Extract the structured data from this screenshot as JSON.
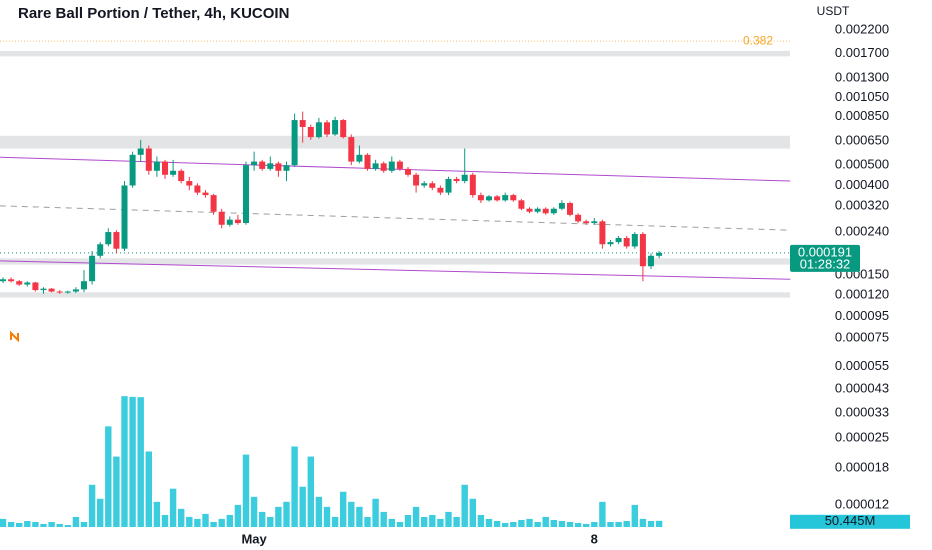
{
  "chart_data": {
    "type": "candlestick",
    "title": "Rare Ball Portion / Tether, 4h, KUCOIN",
    "y_axis_label": "USDT",
    "log_scale": true,
    "up_color": "#089981",
    "down_color": "#f23645",
    "categories": [
      null,
      null,
      null,
      null,
      null,
      null,
      null,
      null,
      null,
      null,
      null,
      null,
      null,
      null,
      null,
      null,
      null,
      null,
      null,
      null,
      null,
      null,
      null,
      null,
      null,
      null,
      null,
      null,
      null,
      null,
      null,
      "May",
      null,
      null,
      null,
      null,
      null,
      null,
      null,
      null,
      null,
      null,
      null,
      null,
      null,
      null,
      null,
      null,
      null,
      null,
      null,
      null,
      null,
      null,
      null,
      null,
      null,
      null,
      null,
      null,
      null,
      null,
      null,
      null,
      null,
      null,
      null,
      null,
      null,
      null,
      null,
      null,
      null,
      "8",
      null,
      null,
      null,
      null,
      null,
      null,
      null,
      null
    ],
    "open": [
      0.00014,
      0.000143,
      0.00014,
      0.000135,
      0.000138,
      0.000127,
      0.000129,
      0.000125,
      0.000124,
      0.000125,
      0.000128,
      0.00014,
      0.000185,
      0.00021,
      0.00024,
      0.0002,
      0.0004,
      0.00056,
      0.0006,
      0.00047,
      0.00052,
      0.00045,
      0.00047,
      0.00042,
      0.0004,
      0.00037,
      0.00036,
      0.0003,
      0.00026,
      0.000275,
      0.000265,
      0.0005,
      0.00052,
      0.00048,
      0.00051,
      0.00047,
      0.0005,
      0.00082,
      0.00076,
      0.00068,
      0.0008,
      0.0007,
      0.00082,
      0.00068,
      0.00052,
      0.00056,
      0.00048,
      0.00051,
      0.00047,
      0.00052,
      0.00048,
      0.00045,
      0.0004,
      0.00041,
      0.00039,
      0.00037,
      0.00043,
      0.00042,
      0.00045,
      0.00036,
      0.00034,
      0.000355,
      0.00034,
      0.00036,
      0.00034,
      0.00031,
      0.0003,
      0.00031,
      0.000295,
      0.00031,
      0.00033,
      0.00029,
      0.00027,
      0.000265,
      0.00027,
      0.00021,
      0.000215,
      0.000225,
      0.000205,
      0.000235,
      0.000165,
      0.000185
    ],
    "high": [
      0.000146,
      0.000146,
      0.000142,
      0.00014,
      0.000139,
      0.000131,
      0.00013,
      0.000127,
      0.000126,
      0.000131,
      0.000158,
      0.000195,
      0.000215,
      0.00025,
      0.000245,
      0.00042,
      0.00058,
      0.00066,
      0.00062,
      0.00055,
      0.00053,
      0.00053,
      0.00048,
      0.00044,
      0.00041,
      0.00038,
      0.000365,
      0.00031,
      0.000285,
      0.00029,
      0.00052,
      0.00058,
      0.00053,
      0.00055,
      0.00052,
      0.00052,
      0.00088,
      0.0009,
      0.00078,
      0.00084,
      0.00082,
      0.00085,
      0.00083,
      0.0007,
      0.00062,
      0.00057,
      0.00053,
      0.00052,
      0.00055,
      0.00053,
      0.00049,
      0.00046,
      0.00042,
      0.00042,
      0.0004,
      0.00044,
      0.00044,
      0.0006,
      0.00046,
      0.00037,
      0.00036,
      0.00036,
      0.00037,
      0.000365,
      0.000345,
      0.000315,
      0.000315,
      0.000315,
      0.000315,
      0.00034,
      0.000335,
      0.000295,
      0.000275,
      0.00028,
      0.000275,
      0.00022,
      0.00023,
      0.00023,
      0.00024,
      0.00024,
      0.00019,
      0.000195
    ],
    "low": [
      0.000137,
      0.000138,
      0.000133,
      0.000132,
      0.000125,
      0.000122,
      0.000124,
      0.000122,
      0.000122,
      0.000123,
      0.000124,
      0.000135,
      0.00018,
      0.000205,
      0.00019,
      0.000195,
      0.00039,
      0.00052,
      0.00045,
      0.00044,
      0.00043,
      0.00044,
      0.00041,
      0.00038,
      0.00036,
      0.00035,
      0.00029,
      0.00025,
      0.000255,
      0.00026,
      0.00026,
      0.00047,
      0.00047,
      0.00047,
      0.00044,
      0.00042,
      0.00049,
      0.00064,
      0.00066,
      0.00067,
      0.00068,
      0.00069,
      0.00067,
      0.0005,
      0.00051,
      0.00047,
      0.00047,
      0.00046,
      0.00046,
      0.00047,
      0.00044,
      0.00037,
      0.00039,
      0.00038,
      0.00036,
      0.00036,
      0.00041,
      0.00041,
      0.00035,
      0.00033,
      0.000335,
      0.000335,
      0.000335,
      0.000335,
      0.000305,
      0.000295,
      0.000295,
      0.00029,
      0.00029,
      0.000305,
      0.000285,
      0.000265,
      0.00026,
      0.00026,
      0.0002,
      0.000205,
      0.00021,
      0.0002,
      0.0002,
      0.00014,
      0.00016,
      0.00018
    ],
    "close": [
      0.000143,
      0.00014,
      0.000135,
      0.000138,
      0.000127,
      0.000129,
      0.000125,
      0.000124,
      0.000125,
      0.000128,
      0.00014,
      0.000185,
      0.00021,
      0.00024,
      0.0002,
      0.0004,
      0.00056,
      0.0006,
      0.00047,
      0.00052,
      0.00045,
      0.00047,
      0.00042,
      0.0004,
      0.00037,
      0.00036,
      0.0003,
      0.00026,
      0.000275,
      0.000265,
      0.0005,
      0.00052,
      0.00048,
      0.00051,
      0.00047,
      0.0005,
      0.00082,
      0.00076,
      0.00068,
      0.0008,
      0.0007,
      0.00082,
      0.00068,
      0.00052,
      0.00056,
      0.00048,
      0.00051,
      0.00047,
      0.00052,
      0.00048,
      0.00045,
      0.0004,
      0.00041,
      0.00039,
      0.00037,
      0.00043,
      0.00042,
      0.00045,
      0.00036,
      0.00034,
      0.000355,
      0.00034,
      0.00036,
      0.00034,
      0.00031,
      0.0003,
      0.00031,
      0.000295,
      0.00031,
      0.00033,
      0.00029,
      0.00027,
      0.000265,
      0.00027,
      0.00021,
      0.000215,
      0.000225,
      0.000205,
      0.000235,
      0.000165,
      0.000185,
      0.000191
    ],
    "ylim": [
      1.02e-05,
      0.00306
    ],
    "yticks": [
      {
        "value": 0.0022,
        "label": "0.002200"
      },
      {
        "value": 0.0017,
        "label": "0.001700"
      },
      {
        "value": 0.0013,
        "label": "0.001300"
      },
      {
        "value": 0.00105,
        "label": "0.001050"
      },
      {
        "value": 0.00085,
        "label": "0.000850"
      },
      {
        "value": 0.00065,
        "label": "0.000650"
      },
      {
        "value": 0.0005,
        "label": "0.000500"
      },
      {
        "value": 0.0004,
        "label": "0.000400"
      },
      {
        "value": 0.00032,
        "label": "0.000320"
      },
      {
        "value": 0.00024,
        "label": "0.000240"
      },
      {
        "value": 0.00015,
        "label": "0.000150"
      },
      {
        "value": 0.00012,
        "label": "0.000120"
      },
      {
        "value": 9.5e-05,
        "label": "0.000095"
      },
      {
        "value": 7.5e-05,
        "label": "0.000075"
      },
      {
        "value": 5.5e-05,
        "label": "0.000055"
      },
      {
        "value": 4.3e-05,
        "label": "0.000043"
      },
      {
        "value": 3.3e-05,
        "label": "0.000033"
      },
      {
        "value": 2.5e-05,
        "label": "0.000025"
      },
      {
        "value": 1.8e-05,
        "label": "0.000018"
      },
      {
        "value": 1.2e-05,
        "label": "0.000012"
      }
    ],
    "volume": {
      "color": "#26c6da",
      "vlim": [
        0,
        1100
      ],
      "values": [
        66,
        41,
        33,
        49,
        41,
        25,
        41,
        25,
        16,
        82,
        41,
        344,
        230,
        820,
        574,
        1066,
        1060,
        1058,
        615,
        205,
        98,
        312,
        148,
        82,
        66,
        107,
        41,
        66,
        98,
        180,
        590,
        246,
        123,
        82,
        164,
        205,
        656,
        328,
        574,
        246,
        164,
        82,
        287,
        205,
        164,
        82,
        230,
        123,
        66,
        41,
        98,
        164,
        82,
        98,
        66,
        123,
        82,
        344,
        230,
        98,
        66,
        49,
        33,
        41,
        57,
        66,
        41,
        82,
        57,
        49,
        41,
        33,
        25,
        41,
        205,
        41,
        41,
        49,
        180,
        66,
        49,
        50.445
      ],
      "last_value_label": "50.445M"
    },
    "last_price": 0.000191,
    "countdown": "01:28:32",
    "fib": {
      "label": "0.382",
      "price": 0.00195,
      "color": "#f5a623"
    },
    "zones": [
      [
        0.00175,
        0.00165
      ],
      [
        0.00069,
        0.0006
      ],
      [
        0.00018,
        0.000168
      ],
      [
        0.000124,
        0.000117
      ]
    ],
    "lines": [
      {
        "start": [
          -0.4,
          0.000545
        ],
        "end": [
          97.2,
          0.00042
        ],
        "color": "#b04ad0",
        "dashed": false
      },
      {
        "start": [
          -0.4,
          0.000175
        ],
        "end": [
          97.2,
          0.000143
        ],
        "color": "#b04ad0",
        "dashed": false
      },
      {
        "start": [
          -0.4,
          0.00032
        ],
        "end": [
          97.2,
          0.000245
        ],
        "color": "#9e9e9e",
        "dashed": true
      }
    ]
  }
}
